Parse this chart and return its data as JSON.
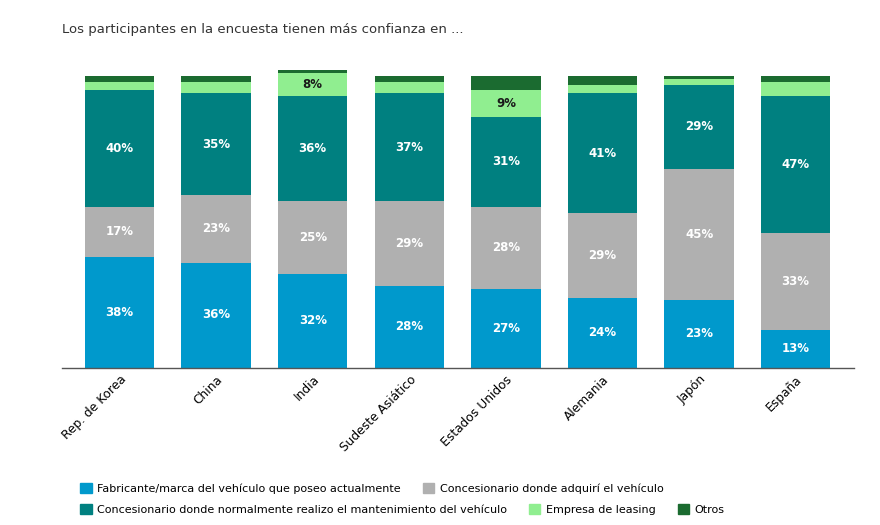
{
  "categories": [
    "Rep. de Korea",
    "China",
    "India",
    "Sudeste Asiático",
    "Estados Unidos",
    "Alemania",
    "Japón",
    "España"
  ],
  "fabricante": [
    38,
    36,
    32,
    28,
    27,
    24,
    23,
    13
  ],
  "concesionario_adq": [
    17,
    23,
    25,
    29,
    28,
    29,
    45,
    33
  ],
  "concesionario_mant": [
    40,
    35,
    36,
    37,
    31,
    41,
    29,
    47
  ],
  "leasing": [
    3,
    4,
    8,
    4,
    9,
    3,
    2,
    5
  ],
  "otros": [
    2,
    2,
    1,
    2,
    5,
    3,
    1,
    2
  ],
  "colors": {
    "fabricante": "#0099CC",
    "concesionario_adq": "#B0B0B0",
    "concesionario_mant": "#008080",
    "leasing": "#90EE90",
    "otros": "#1B6B30"
  },
  "subtitle": "Los participantes en la encuesta tienen más confianza en ...",
  "legend_labels": [
    "Fabricante/marca del vehículo que poseo actualmente",
    "Concesionario donde adquirí el vehículo",
    "Concesionario donde normalmente realizo el mantenimiento del vehículo",
    "Empresa de leasing",
    "Otros"
  ],
  "label_fontsize": 8.5,
  "subtitle_fontsize": 9.5
}
